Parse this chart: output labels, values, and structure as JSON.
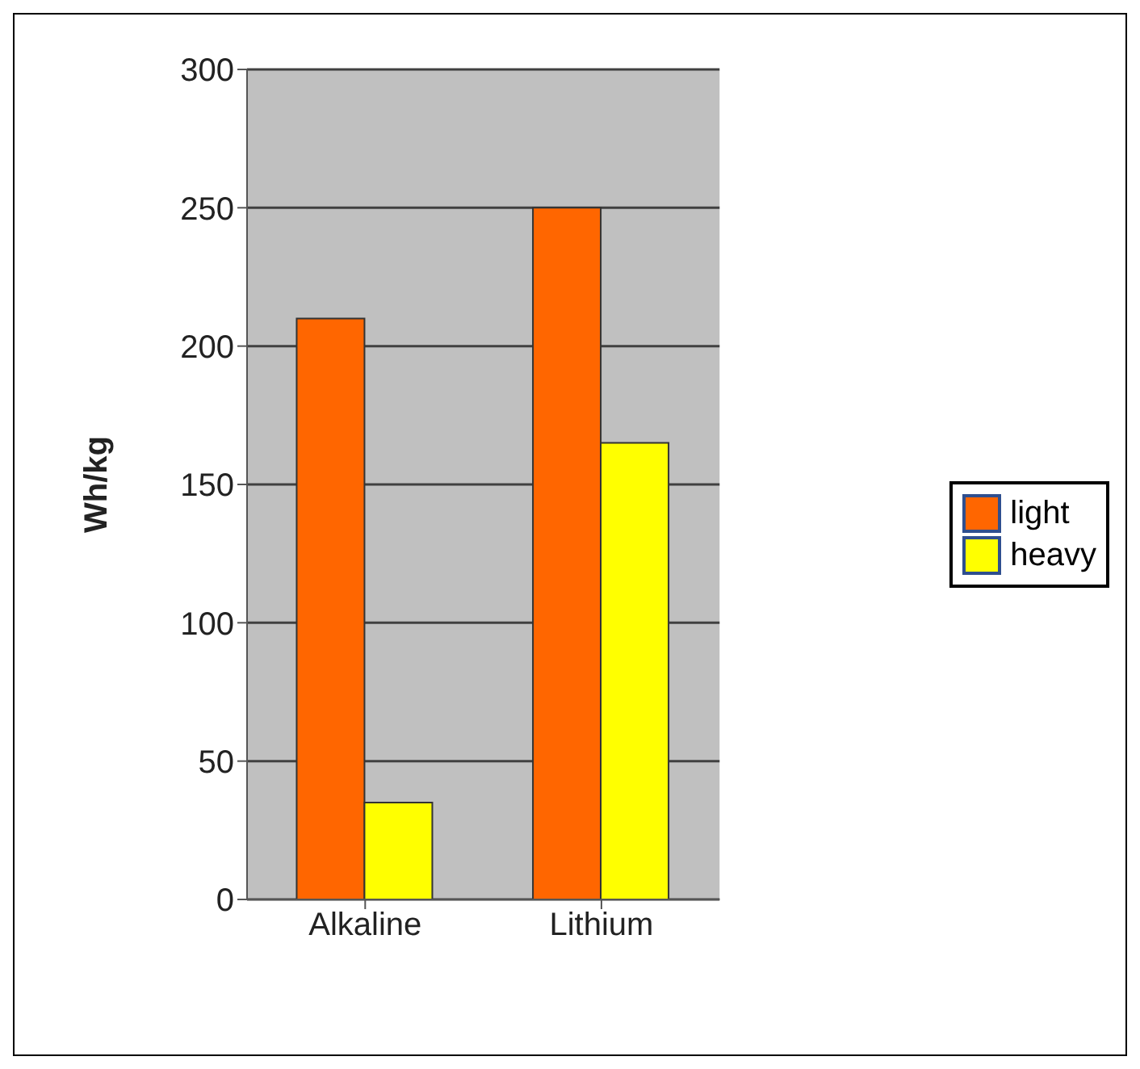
{
  "chart_data": {
    "type": "bar",
    "ylabel": "Wh/kg",
    "categories": [
      "Alkaline",
      "Lithium"
    ],
    "series": [
      {
        "name": "light",
        "color": "#ff6600",
        "values": [
          210,
          250
        ]
      },
      {
        "name": "heavy",
        "color": "#ffff00",
        "values": [
          35,
          165
        ]
      }
    ],
    "ylim": [
      0,
      300
    ],
    "yticks": [
      0,
      50,
      100,
      150,
      200,
      250,
      300
    ],
    "grid": "y",
    "legend": "right"
  }
}
